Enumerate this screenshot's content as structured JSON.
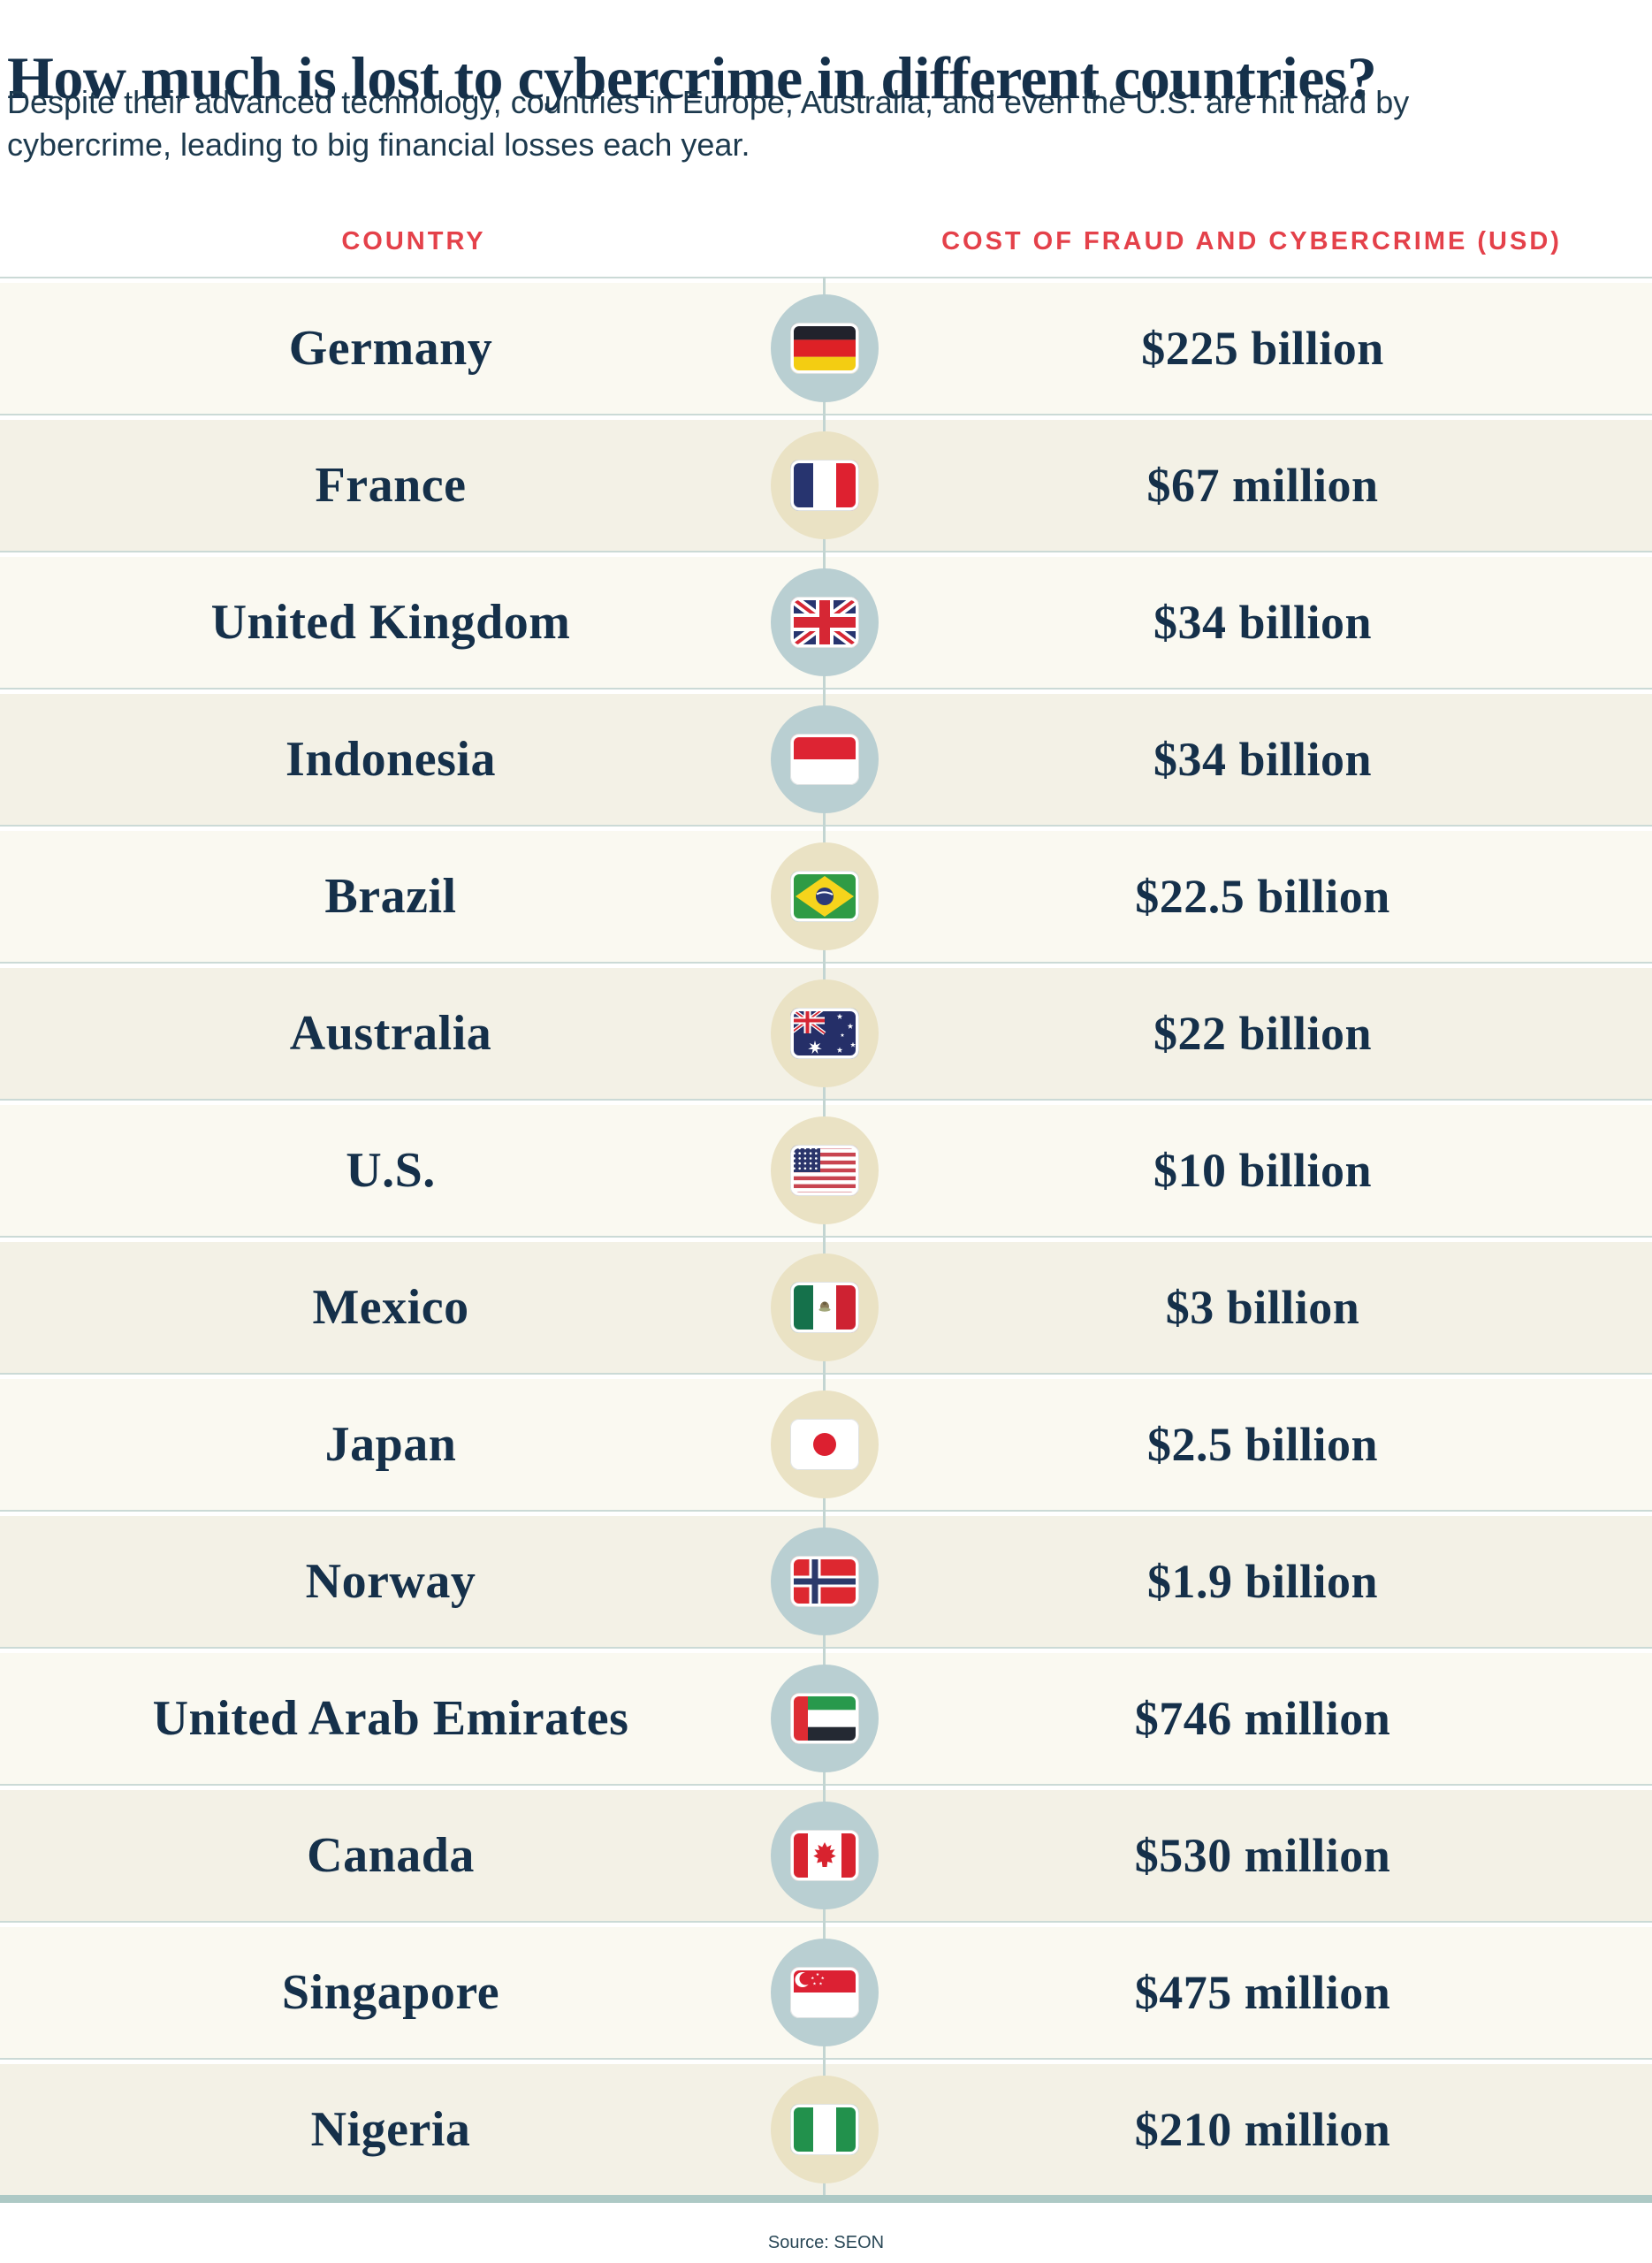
{
  "page": {
    "title": "How much is lost to cybercrime in different countries?",
    "subtitle_lines": [
      "Despite their advanced technology, countries in Europe, Australia, and even the U.S. are hit hard by",
      "cybercrime, leading to big financial losses each year."
    ],
    "source": "Source: SEON"
  },
  "table": {
    "headers": {
      "country": "COUNTRY",
      "cost": "COST OF FRAUD AND CYBERCRIME (USD)"
    },
    "rows": [
      {
        "country": "Germany",
        "value": "$225 billion",
        "flag": "germany",
        "circle": "blue"
      },
      {
        "country": "France",
        "value": "$67 million",
        "flag": "france",
        "circle": "cream"
      },
      {
        "country": "United Kingdom",
        "value": "$34 billion",
        "flag": "uk",
        "circle": "blue"
      },
      {
        "country": "Indonesia",
        "value": "$34 billion",
        "flag": "indonesia",
        "circle": "blue"
      },
      {
        "country": "Brazil",
        "value": "$22.5 billion",
        "flag": "brazil",
        "circle": "cream"
      },
      {
        "country": "Australia",
        "value": "$22 billion",
        "flag": "australia",
        "circle": "cream"
      },
      {
        "country": "U.S.",
        "value": "$10 billion",
        "flag": "us",
        "circle": "cream"
      },
      {
        "country": "Mexico",
        "value": "$3 billion",
        "flag": "mexico",
        "circle": "cream"
      },
      {
        "country": "Japan",
        "value": "$2.5 billion",
        "flag": "japan",
        "circle": "cream"
      },
      {
        "country": "Norway",
        "value": "$1.9 billion",
        "flag": "norway",
        "circle": "blue"
      },
      {
        "country": "United Arab Emirates",
        "value": "$746 million",
        "flag": "uae",
        "circle": "blue"
      },
      {
        "country": "Canada",
        "value": "$530 million",
        "flag": "canada",
        "circle": "blue"
      },
      {
        "country": "Singapore",
        "value": "$475 million",
        "flag": "singapore",
        "circle": "blue"
      },
      {
        "country": "Nigeria",
        "value": "$210 million",
        "flag": "nigeria",
        "circle": "cream"
      }
    ]
  },
  "chart_data": {
    "type": "table",
    "title": "How much is lost to cybercrime in different countries?",
    "columns": [
      "Country",
      "Cost of fraud and cybercrime (USD)"
    ],
    "rows": [
      [
        "Germany",
        "$225 billion"
      ],
      [
        "France",
        "$67 million"
      ],
      [
        "United Kingdom",
        "$34 billion"
      ],
      [
        "Indonesia",
        "$34 billion"
      ],
      [
        "Brazil",
        "$22.5 billion"
      ],
      [
        "Australia",
        "$22 billion"
      ],
      [
        "U.S.",
        "$10 billion"
      ],
      [
        "Mexico",
        "$3 billion"
      ],
      [
        "Japan",
        "$2.5 billion"
      ],
      [
        "Norway",
        "$1.9 billion"
      ],
      [
        "United Arab Emirates",
        "$746 million"
      ],
      [
        "Canada",
        "$530 million"
      ],
      [
        "Singapore",
        "$475 million"
      ],
      [
        "Nigeria",
        "$210 million"
      ]
    ],
    "values_usd": [
      225000000000,
      67000000,
      34000000000,
      34000000000,
      22500000000,
      22000000000,
      10000000000,
      3000000000,
      2500000000,
      1900000000,
      746000000,
      530000000,
      475000000,
      210000000
    ],
    "source": "SEON"
  },
  "colors": {
    "text_navy": "#15304a",
    "subtitle_navy": "#1d3a4e",
    "header_red": "#e4414a",
    "circle_blue": "#b9cfd2",
    "circle_cream": "#eae2c4",
    "row_light": "#faf9f1",
    "row_dark": "#f3f1e6",
    "row_line": "#cbdad6",
    "connector": "#c3d5d2",
    "bottom_bar": "#adc9c5"
  }
}
